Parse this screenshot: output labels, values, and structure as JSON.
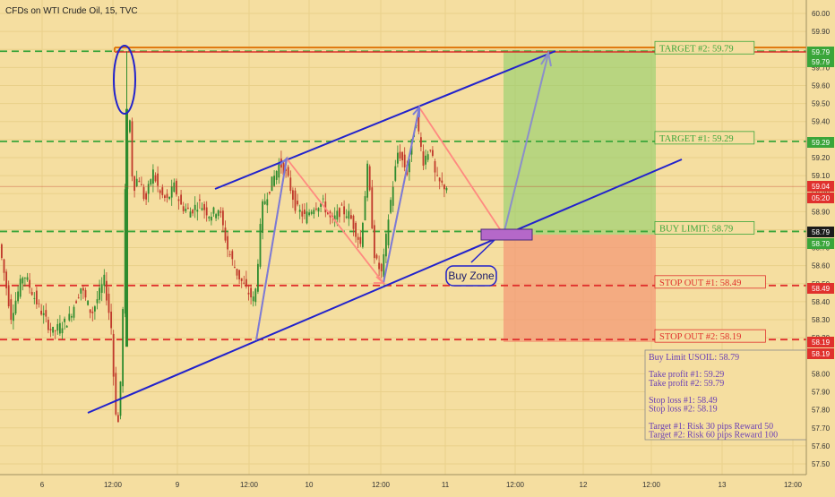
{
  "header": {
    "title": "CFDs on WTI Crude Oil, 15, TVC"
  },
  "colors": {
    "background": "#f5dea0",
    "grid": "#e9d08a",
    "candle_up": "#2e8b2e",
    "candle_down": "#c0392b",
    "channel_line": "#2222cc",
    "target_box": "#8fcf6a",
    "stop_box": "#f39a77",
    "green_dash": "#3aa53a",
    "red_dash": "#e0312d",
    "info_text": "#6a3fb5",
    "zone_fill": "#b568c9"
  },
  "chart_data": {
    "type": "candlestick",
    "y_axis": {
      "range": [
        57.48,
        60.06
      ],
      "ticks": [
        "60.00",
        "59.90",
        "59.80",
        "59.70",
        "59.60",
        "59.50",
        "59.40",
        "59.30",
        "59.20",
        "59.10",
        "59.00",
        "58.90",
        "58.80",
        "58.70",
        "58.60",
        "58.50",
        "58.40",
        "58.30",
        "58.20",
        "58.10",
        "58.00",
        "57.90",
        "57.80",
        "57.70",
        "57.60",
        "57.50"
      ]
    },
    "x_axis": {
      "ticks": [
        "6",
        "12:00",
        "9",
        "12:00",
        "10",
        "12:00",
        "11",
        "12:00",
        "12",
        "12:00",
        "13",
        "12:00"
      ]
    },
    "price_tags": [
      {
        "label": "59.79",
        "color": "#3aa53a"
      },
      {
        "label": "59.79",
        "color": "#3aa53a"
      },
      {
        "label": "59.29",
        "color": "#3aa53a"
      },
      {
        "label": "59.04",
        "color": "#e0312d"
      },
      {
        "label": "05:20",
        "color": "#e0312d"
      },
      {
        "label": "58.79",
        "color": "#1a1a1a"
      },
      {
        "label": "58.79",
        "color": "#3aa53a"
      },
      {
        "label": "58.49",
        "color": "#e0312d"
      },
      {
        "label": "58.19",
        "color": "#e0312d"
      },
      {
        "label": "58.19",
        "color": "#e0312d"
      }
    ],
    "levels": [
      {
        "label": "TARGET #2: 59.79",
        "value": 59.79,
        "color": "#3aa53a"
      },
      {
        "label": "TARGET #1: 59.29",
        "value": 59.29,
        "color": "#3aa53a"
      },
      {
        "label": "BUY LIMIT: 58.79",
        "value": 58.79,
        "color": "#3aa53a"
      },
      {
        "label": "STOP OUT #1: 58.49",
        "value": 58.49,
        "color": "#e0312d"
      },
      {
        "label": "STOP OUT #2: 58.19",
        "value": 58.19,
        "color": "#e0312d"
      }
    ],
    "annotations": {
      "buy_zone": "Buy Zone",
      "info_lines": [
        "Buy Limit USOIL: 58.79",
        "",
        "Take profit #1: 59.29",
        "Take profit #2: 59.79",
        "",
        "Stop loss #1: 58.49",
        "Stop loss #2: 58.19",
        "",
        "Target #1: Risk 30 pips Reward 50",
        "Target #2: Risk 60 pips Reward 100"
      ]
    },
    "price_path": [
      [
        0,
        58.75
      ],
      [
        14,
        58.32
      ],
      [
        28,
        58.56
      ],
      [
        44,
        58.38
      ],
      [
        60,
        58.23
      ],
      [
        78,
        58.3
      ],
      [
        92,
        58.48
      ],
      [
        104,
        58.33
      ],
      [
        118,
        58.52
      ],
      [
        126,
        58.25
      ],
      [
        130,
        57.82
      ],
      [
        134,
        57.72
      ],
      [
        138,
        58.15
      ],
      [
        142,
        59.15
      ],
      [
        146,
        59.47
      ],
      [
        150,
        59.02
      ],
      [
        156,
        59.1
      ],
      [
        164,
        58.95
      ],
      [
        172,
        59.13
      ],
      [
        180,
        59.0
      ],
      [
        188,
        58.96
      ],
      [
        196,
        59.04
      ],
      [
        204,
        58.93
      ],
      [
        214,
        58.9
      ],
      [
        224,
        58.95
      ],
      [
        236,
        58.88
      ],
      [
        246,
        58.92
      ],
      [
        256,
        58.69
      ],
      [
        266,
        58.56
      ],
      [
        276,
        58.47
      ],
      [
        286,
        58.4
      ],
      [
        294,
        58.92
      ],
      [
        304,
        59.05
      ],
      [
        314,
        59.17
      ],
      [
        322,
        59.1
      ],
      [
        332,
        58.92
      ],
      [
        342,
        58.87
      ],
      [
        352,
        58.93
      ],
      [
        362,
        58.95
      ],
      [
        372,
        58.84
      ],
      [
        382,
        58.91
      ],
      [
        392,
        58.88
      ],
      [
        404,
        58.72
      ],
      [
        412,
        59.15
      ],
      [
        420,
        58.64
      ],
      [
        428,
        58.55
      ],
      [
        436,
        58.9
      ],
      [
        446,
        59.24
      ],
      [
        456,
        59.12
      ],
      [
        466,
        59.42
      ],
      [
        474,
        59.18
      ],
      [
        482,
        59.26
      ],
      [
        488,
        59.08
      ],
      [
        494,
        59.05
      ],
      [
        498,
        59.04
      ]
    ]
  }
}
